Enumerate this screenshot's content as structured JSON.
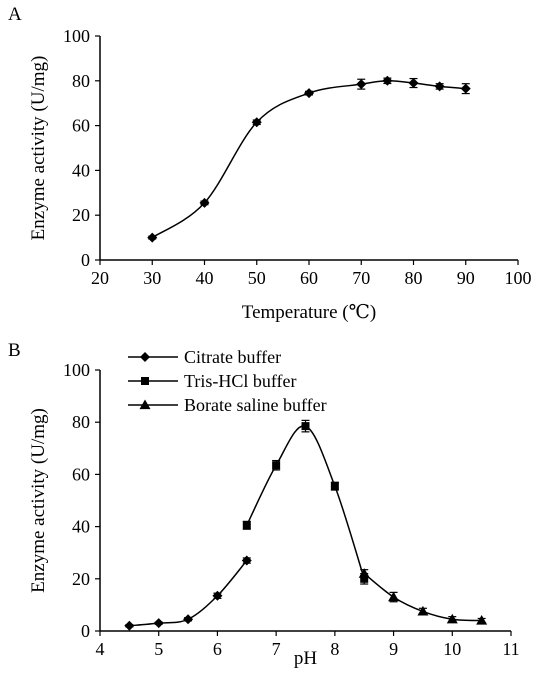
{
  "chart_data": [
    {
      "panel": "A",
      "type": "line",
      "xlabel": "Temperature (℃)",
      "ylabel": "Enzyme activity (U/mg)",
      "xlim": [
        20,
        100
      ],
      "ylim": [
        0,
        100
      ],
      "xticks": [
        20,
        30,
        40,
        50,
        60,
        70,
        80,
        90,
        100
      ],
      "yticks": [
        0,
        20,
        40,
        60,
        80,
        100
      ],
      "grid": false,
      "series": [
        {
          "marker": "diamond",
          "x": [
            30,
            40,
            50,
            60,
            70,
            75,
            80,
            85,
            90
          ],
          "y": [
            10,
            25.5,
            61.5,
            74.5,
            78.5,
            80,
            79,
            77.5,
            76.5
          ],
          "err": [
            0.6,
            0.8,
            1.0,
            0.8,
            2.2,
            1.2,
            2.0,
            1.2,
            2.2
          ]
        }
      ]
    },
    {
      "panel": "B",
      "type": "line",
      "xlabel": "pH",
      "ylabel": "Enzyme activity (U/mg)",
      "xlim": [
        4,
        11
      ],
      "ylim": [
        0,
        100
      ],
      "xticks": [
        4,
        5,
        6,
        7,
        8,
        9,
        10,
        11
      ],
      "yticks": [
        0,
        20,
        40,
        60,
        80,
        100
      ],
      "grid": false,
      "legend_position": "top-left",
      "series": [
        {
          "name": "Citrate buffer",
          "marker": "diamond",
          "x": [
            4.5,
            5.0,
            5.5,
            6.0,
            6.5
          ],
          "y": [
            2,
            3,
            4.5,
            13.5,
            27
          ],
          "err": [
            0.4,
            0.4,
            0.6,
            1.0,
            1.0
          ]
        },
        {
          "name": "Tris-HCl buffer",
          "marker": "square",
          "x": [
            6.5,
            7.0,
            7.5,
            8.0,
            8.5
          ],
          "y": [
            40.5,
            63.5,
            78.5,
            55.5,
            20
          ],
          "err": [
            1.5,
            1.8,
            2.2,
            1.5,
            2.0
          ]
        },
        {
          "name": "Borate saline buffer",
          "marker": "triangle",
          "x": [
            8.5,
            9.0,
            9.5,
            10.0,
            10.5
          ],
          "y": [
            22,
            13,
            7.5,
            4.5,
            4
          ],
          "err": [
            1.5,
            1.8,
            1.2,
            1.0,
            0.8
          ]
        }
      ]
    }
  ]
}
